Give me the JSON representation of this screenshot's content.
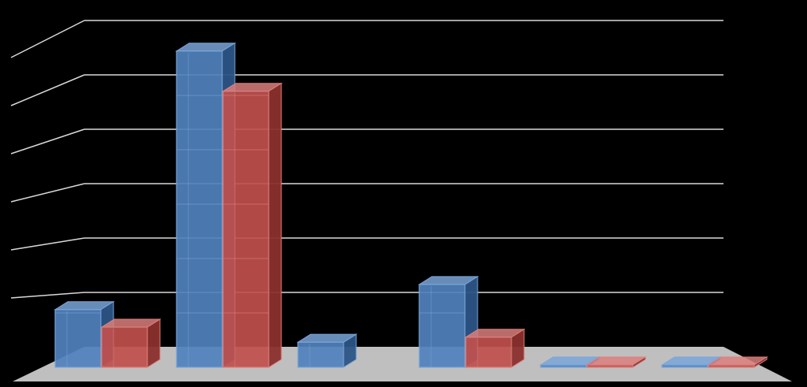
{
  "chart_data": {
    "type": "bar",
    "style": "3d-clustered-column",
    "categories": [
      "",
      "",
      "",
      "",
      "",
      ""
    ],
    "series": [
      {
        "values": [
          1.15,
          6.3,
          0.5,
          1.65,
          0.01,
          0.01
        ]
      },
      {
        "values": [
          0.8,
          5.5,
          null,
          0.6,
          0.01,
          0.01
        ]
      }
    ],
    "ylim": [
      0,
      6.5
    ],
    "grid": true,
    "legend": "none",
    "title": "",
    "xlabel": "",
    "ylabel": ""
  },
  "colors": {
    "background": "#000000",
    "gridline": "#d9d9d9",
    "floor": "#bfbfbf",
    "series": [
      "#4f81bd",
      "#c0504d"
    ],
    "series_dark": [
      "#2c5486",
      "#8b302e"
    ],
    "series_light": [
      "#7aa5d8",
      "#db7f7c"
    ]
  }
}
